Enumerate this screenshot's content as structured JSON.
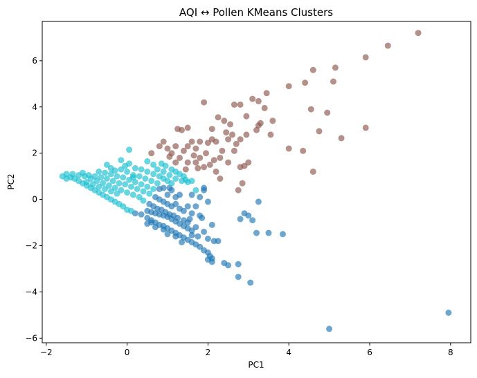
{
  "chart_data": {
    "type": "scatter",
    "title": "AQI ↔ Pollen KMeans Clusters",
    "xlabel": "PC1",
    "ylabel": "PC2",
    "xlim": [
      -2.1,
      8.5
    ],
    "ylim": [
      -6.2,
      7.7
    ],
    "xticks": [
      -2,
      0,
      2,
      4,
      6,
      8
    ],
    "yticks": [
      -6,
      -4,
      -2,
      0,
      2,
      4,
      6
    ],
    "grid": false,
    "legend": "none",
    "series": [
      {
        "color": "#1f77b4",
        "points": [
          [
            0.2,
            -0.6
          ],
          [
            0.35,
            -0.65
          ],
          [
            0.5,
            -0.8
          ],
          [
            0.6,
            -0.9
          ],
          [
            0.7,
            -1.0
          ],
          [
            0.8,
            -1.1
          ],
          [
            0.9,
            -1.15
          ],
          [
            1.0,
            -1.25
          ],
          [
            1.1,
            -1.35
          ],
          [
            1.2,
            -1.45
          ],
          [
            1.3,
            -1.55
          ],
          [
            1.4,
            -1.65
          ],
          [
            1.5,
            -1.75
          ],
          [
            1.6,
            -1.85
          ],
          [
            1.7,
            -1.95
          ],
          [
            1.8,
            -2.05
          ],
          [
            1.9,
            -2.2
          ],
          [
            2.0,
            -2.3
          ],
          [
            2.05,
            -2.45
          ],
          [
            2.1,
            -2.55
          ],
          [
            0.5,
            -0.5
          ],
          [
            0.6,
            -0.55
          ],
          [
            0.7,
            -0.6
          ],
          [
            0.8,
            -0.65
          ],
          [
            0.9,
            -0.7
          ],
          [
            1.0,
            -0.75
          ],
          [
            1.1,
            -0.85
          ],
          [
            1.2,
            -0.95
          ],
          [
            1.3,
            -1.05
          ],
          [
            1.4,
            -1.15
          ],
          [
            1.5,
            -1.25
          ],
          [
            1.6,
            -1.35
          ],
          [
            0.55,
            -0.2
          ],
          [
            0.65,
            -0.3
          ],
          [
            0.75,
            -0.4
          ],
          [
            0.85,
            -0.45
          ],
          [
            0.95,
            -0.55
          ],
          [
            1.05,
            -0.65
          ],
          [
            1.15,
            -0.7
          ],
          [
            1.25,
            -0.8
          ],
          [
            0.7,
            0.1
          ],
          [
            0.8,
            0.0
          ],
          [
            0.9,
            -0.1
          ],
          [
            1.0,
            -0.2
          ],
          [
            1.1,
            -0.3
          ],
          [
            1.2,
            -0.2
          ],
          [
            1.3,
            -0.4
          ],
          [
            1.4,
            -0.5
          ],
          [
            1.5,
            -0.3
          ],
          [
            1.6,
            -0.6
          ],
          [
            1.0,
            0.2
          ],
          [
            1.1,
            0.4
          ],
          [
            1.2,
            0.1
          ],
          [
            1.3,
            0.2
          ],
          [
            0.8,
            0.45
          ],
          [
            0.9,
            0.5
          ],
          [
            1.05,
            0.5
          ],
          [
            1.4,
            -0.9
          ],
          [
            1.5,
            -1.0
          ],
          [
            1.7,
            -1.2
          ],
          [
            1.8,
            -0.7
          ],
          [
            1.7,
            -0.3
          ],
          [
            1.8,
            0.1
          ],
          [
            1.9,
            0.4
          ],
          [
            2.0,
            -0.1
          ],
          [
            1.85,
            -0.8
          ],
          [
            1.9,
            -1.4
          ],
          [
            2.0,
            -1.7
          ],
          [
            2.15,
            -1.8
          ],
          [
            2.25,
            -1.8
          ],
          [
            2.1,
            -1.1
          ],
          [
            1.6,
            -1.55
          ],
          [
            1.75,
            -1.6
          ],
          [
            0.6,
            -1.0
          ],
          [
            0.5,
            -1.05
          ],
          [
            0.7,
            -1.2
          ],
          [
            0.9,
            -1.3
          ],
          [
            1.0,
            -1.5
          ],
          [
            1.2,
            -1.6
          ],
          [
            1.35,
            -1.85
          ],
          [
            2.0,
            -2.6
          ],
          [
            2.1,
            -2.7
          ],
          [
            2.4,
            -2.75
          ],
          [
            2.5,
            -2.85
          ],
          [
            2.75,
            -2.8
          ],
          [
            2.75,
            -3.35
          ],
          [
            3.05,
            -3.6
          ],
          [
            2.8,
            -0.85
          ],
          [
            2.9,
            -0.6
          ],
          [
            3.0,
            -0.7
          ],
          [
            3.1,
            -0.9
          ],
          [
            3.2,
            -1.45
          ],
          [
            3.25,
            -0.1
          ],
          [
            3.5,
            -1.45
          ],
          [
            3.85,
            -1.5
          ],
          [
            5.0,
            -5.6
          ],
          [
            7.95,
            -4.9
          ],
          [
            1.9,
            0.5
          ],
          [
            1.6,
            0.2
          ],
          [
            1.55,
            -0.85
          ]
        ]
      },
      {
        "color": "#17becf",
        "points": [
          [
            -1.6,
            1.0
          ],
          [
            -1.5,
            1.1
          ],
          [
            -1.4,
            0.95
          ],
          [
            -1.3,
            0.9
          ],
          [
            -1.2,
            0.8
          ],
          [
            -1.1,
            0.7
          ],
          [
            -1.0,
            0.6
          ],
          [
            -0.9,
            0.5
          ],
          [
            -0.8,
            0.4
          ],
          [
            -0.7,
            0.3
          ],
          [
            -0.6,
            0.2
          ],
          [
            -0.5,
            0.1
          ],
          [
            -0.4,
            0.0
          ],
          [
            -0.3,
            -0.1
          ],
          [
            -0.2,
            -0.2
          ],
          [
            -0.1,
            -0.3
          ],
          [
            0.0,
            -0.45
          ],
          [
            0.1,
            -0.5
          ],
          [
            -1.5,
            0.9
          ],
          [
            -1.35,
            1.1
          ],
          [
            -1.2,
            1.05
          ],
          [
            -1.05,
            1.0
          ],
          [
            -0.9,
            0.9
          ],
          [
            -0.75,
            0.8
          ],
          [
            -0.6,
            0.7
          ],
          [
            -0.45,
            0.6
          ],
          [
            -0.3,
            0.5
          ],
          [
            -0.15,
            0.4
          ],
          [
            0.0,
            0.3
          ],
          [
            0.15,
            0.2
          ],
          [
            0.3,
            0.1
          ],
          [
            0.4,
            -0.05
          ],
          [
            -1.1,
            1.15
          ],
          [
            -0.95,
            1.05
          ],
          [
            -0.8,
            1.0
          ],
          [
            -0.65,
            0.95
          ],
          [
            -0.5,
            0.9
          ],
          [
            -0.35,
            0.8
          ],
          [
            -0.2,
            0.7
          ],
          [
            -0.05,
            0.65
          ],
          [
            0.1,
            0.55
          ],
          [
            0.25,
            0.45
          ],
          [
            0.4,
            0.35
          ],
          [
            0.55,
            0.25
          ],
          [
            -0.7,
            1.2
          ],
          [
            -0.55,
            1.15
          ],
          [
            -0.4,
            1.1
          ],
          [
            -0.25,
            1.0
          ],
          [
            -0.1,
            0.95
          ],
          [
            0.05,
            0.85
          ],
          [
            0.2,
            0.75
          ],
          [
            0.35,
            0.65
          ],
          [
            0.5,
            0.55
          ],
          [
            0.65,
            0.45
          ],
          [
            -0.5,
            1.5
          ],
          [
            -0.4,
            1.35
          ],
          [
            -0.3,
            1.25
          ],
          [
            -0.15,
            1.3
          ],
          [
            0.0,
            1.2
          ],
          [
            0.15,
            1.05
          ],
          [
            0.3,
            1.0
          ],
          [
            0.45,
            0.9
          ],
          [
            0.6,
            0.8
          ],
          [
            0.75,
            0.7
          ],
          [
            0.05,
            1.55
          ],
          [
            -0.05,
            1.45
          ],
          [
            0.2,
            1.35
          ],
          [
            0.35,
            1.3
          ],
          [
            0.5,
            1.2
          ],
          [
            0.65,
            1.1
          ],
          [
            0.8,
            1.0
          ],
          [
            0.9,
            0.9
          ],
          [
            1.0,
            0.8
          ],
          [
            1.1,
            0.7
          ],
          [
            -0.15,
            1.7
          ],
          [
            0.05,
            2.15
          ],
          [
            0.5,
            1.65
          ],
          [
            0.65,
            1.5
          ],
          [
            0.85,
            1.55
          ],
          [
            0.95,
            1.45
          ],
          [
            1.1,
            1.3
          ],
          [
            1.2,
            1.2
          ],
          [
            1.3,
            1.1
          ],
          [
            1.4,
            1.0
          ],
          [
            1.45,
            0.85
          ],
          [
            1.35,
            0.8
          ],
          [
            1.2,
            0.9
          ],
          [
            1.05,
            1.05
          ],
          [
            0.9,
            1.2
          ],
          [
            0.75,
            1.3
          ],
          [
            1.5,
            0.75
          ],
          [
            1.6,
            0.8
          ],
          [
            1.7,
            0.4
          ],
          [
            0.15,
            0.95
          ],
          [
            -1.0,
            0.75
          ],
          [
            -0.85,
            0.65
          ],
          [
            -0.7,
            0.55
          ],
          [
            -0.55,
            0.45
          ],
          [
            -0.4,
            0.35
          ],
          [
            -0.25,
            0.25
          ]
        ]
      },
      {
        "color": "#8c564b",
        "points": [
          [
            0.6,
            2.0
          ],
          [
            0.8,
            2.3
          ],
          [
            0.9,
            2.5
          ],
          [
            1.0,
            2.2
          ],
          [
            1.1,
            2.0
          ],
          [
            1.2,
            2.3
          ],
          [
            1.3,
            1.8
          ],
          [
            1.4,
            2.1
          ],
          [
            1.5,
            2.3
          ],
          [
            1.6,
            2.5
          ],
          [
            1.7,
            2.2
          ],
          [
            1.8,
            2.5
          ],
          [
            1.25,
            3.05
          ],
          [
            1.35,
            3.0
          ],
          [
            1.5,
            3.1
          ],
          [
            1.9,
            4.2
          ],
          [
            2.1,
            3.05
          ],
          [
            2.25,
            3.55
          ],
          [
            2.4,
            3.4
          ],
          [
            2.55,
            3.25
          ],
          [
            2.65,
            4.1
          ],
          [
            2.8,
            4.1
          ],
          [
            2.95,
            3.6
          ],
          [
            3.1,
            4.35
          ],
          [
            3.25,
            4.25
          ],
          [
            3.4,
            3.95
          ],
          [
            3.45,
            4.6
          ],
          [
            3.25,
            3.2
          ],
          [
            3.55,
            2.8
          ],
          [
            3.6,
            3.4
          ],
          [
            2.0,
            2.45
          ],
          [
            2.2,
            2.5
          ],
          [
            2.35,
            2.1
          ],
          [
            2.5,
            2.6
          ],
          [
            2.65,
            2.1
          ],
          [
            2.8,
            2.6
          ],
          [
            2.95,
            2.8
          ],
          [
            3.2,
            3.0
          ],
          [
            3.0,
            1.6
          ],
          [
            2.8,
            1.4
          ],
          [
            2.5,
            1.6
          ],
          [
            2.3,
            1.8
          ],
          [
            2.2,
            1.2
          ],
          [
            2.05,
            1.5
          ],
          [
            2.3,
            0.9
          ],
          [
            1.9,
            1.4
          ],
          [
            1.7,
            1.6
          ],
          [
            2.75,
            0.4
          ],
          [
            2.85,
            0.7
          ],
          [
            2.9,
            1.45
          ],
          [
            1.5,
            1.6
          ],
          [
            1.65,
            1.9
          ],
          [
            1.2,
            1.6
          ],
          [
            1.05,
            1.85
          ],
          [
            4.0,
            2.2
          ],
          [
            4.0,
            4.9
          ],
          [
            4.35,
            2.1
          ],
          [
            4.4,
            5.05
          ],
          [
            4.55,
            3.9
          ],
          [
            4.6,
            1.2
          ],
          [
            4.6,
            5.6
          ],
          [
            4.75,
            2.95
          ],
          [
            4.95,
            3.75
          ],
          [
            5.1,
            5.1
          ],
          [
            5.15,
            5.7
          ],
          [
            5.3,
            2.65
          ],
          [
            5.9,
            3.1
          ],
          [
            5.9,
            6.15
          ],
          [
            6.45,
            6.65
          ],
          [
            7.2,
            7.2
          ],
          [
            2.6,
            2.8
          ],
          [
            2.7,
            2.4
          ],
          [
            1.95,
            2.0
          ],
          [
            2.1,
            2.6
          ],
          [
            1.45,
            1.3
          ],
          [
            1.75,
            1.35
          ],
          [
            1.8,
            1.8
          ],
          [
            2.15,
            1.7
          ],
          [
            3.3,
            3.3
          ],
          [
            2.45,
            2.9
          ]
        ]
      }
    ]
  }
}
